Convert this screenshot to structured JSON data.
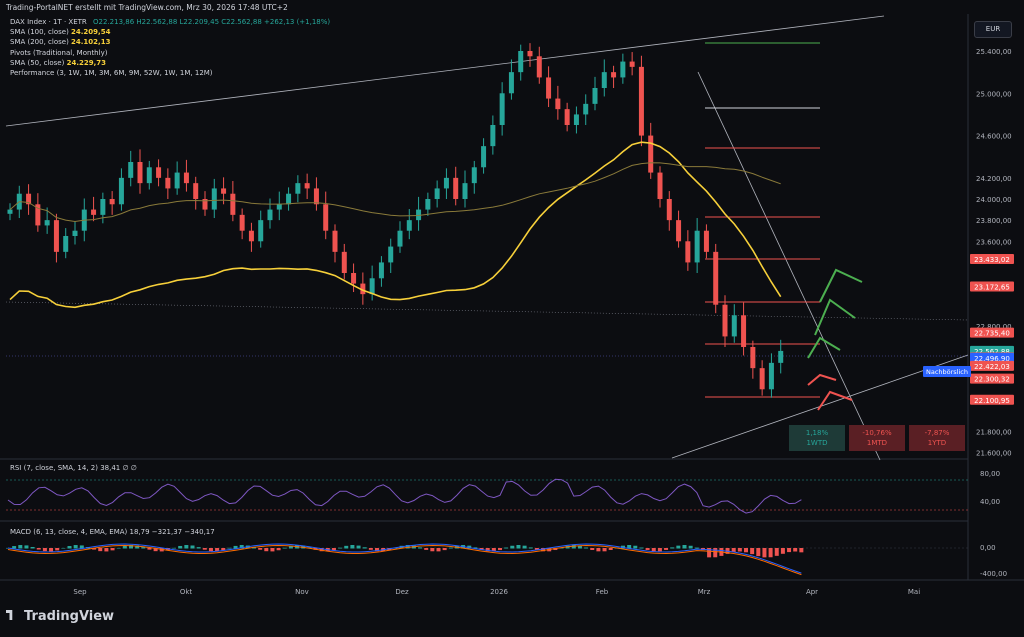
{
  "header": {
    "title": "Trading-PortalNET erstellt mit TradingView.com, Mrz 30, 2026 17:48 UTC+2"
  },
  "legend": {
    "symbol": "DAX Index · 1T · XETR",
    "ohlc": "O22.213,86  H22.562,88  L22.209,45  C22.562,88  +262,13 (+1,18%)",
    "items": [
      {
        "label": "SMA (100, close)",
        "value": "24.209,54",
        "color": "#f7d03a"
      },
      {
        "label": "SMA (200, close)",
        "value": "24.102,13",
        "color": "#f7d03a"
      },
      {
        "label": "Pivots (Traditional, Monthly)",
        "value": "",
        "color": "#d1d4dc"
      },
      {
        "label": "SMA (50, close)",
        "value": "24.229,73",
        "color": "#f7d03a"
      },
      {
        "label": "Performance (3, 1W, 1M, 3M, 6M, 9M, 52W, 1W, 1M, 12M)",
        "value": "",
        "color": "#d1d4dc"
      }
    ]
  },
  "currency_button": "EUR",
  "nachboerslich_label": "Nachbörslich",
  "performance": [
    {
      "pct": "1,18%",
      "period": "1WTD",
      "color": "#1e3a37",
      "text": "#26a69a"
    },
    {
      "pct": "-10,76%",
      "period": "1MTD",
      "color": "#5a1f24",
      "text": "#ef5350"
    },
    {
      "pct": "-7,87%",
      "period": "1YTD",
      "color": "#5a1f24",
      "text": "#ef5350"
    }
  ],
  "rsi_label": "RSI (7, close, SMA, 14, 2)  38,41  ∅  ∅",
  "macd_label": "MACD (6, 13, close, 4, EMA, EMA)  18,79  −321,37  −340,17",
  "footer": "TradingView",
  "colors": {
    "up": "#26a69a",
    "down": "#ef5350",
    "sma": "#f7d03a",
    "bg": "#0c0d11"
  },
  "chart_data": {
    "type": "candlestick",
    "x_ticks": [
      "Sep",
      "Okt",
      "Nov",
      "Dez",
      "2026",
      "Feb",
      "Mrz",
      "Apr",
      "Mai"
    ],
    "y_ticks": [
      "25.400,00",
      "25.000,00",
      "24.600,00",
      "24.200,00",
      "24.000,00",
      "23.800,00",
      "23.600,00",
      "22.800,00",
      "21.800,00",
      "21.600,00"
    ],
    "ylim": [
      21550,
      25750
    ],
    "price_tags": [
      {
        "value": 23433.02,
        "label": "23.433,02",
        "color": "#ef5350"
      },
      {
        "value": 23172.65,
        "label": "23.172,65",
        "color": "#ef5350"
      },
      {
        "value": 22735.4,
        "label": "22.735,40",
        "color": "#ef5350"
      },
      {
        "value": 22562.88,
        "label": "22.562,88",
        "color": "#26a69a"
      },
      {
        "value": 22501.49,
        "label": "22.501,49",
        "color": "#ef5350"
      },
      {
        "value": 22496.9,
        "label": "22.496,90",
        "color": "#2962ff"
      },
      {
        "value": 22422.03,
        "label": "22.422,03",
        "color": "#ef5350"
      },
      {
        "value": 22300.32,
        "label": "22.300,32",
        "color": "#ef5350"
      },
      {
        "value": 22100.95,
        "label": "22.100,95",
        "color": "#ef5350"
      }
    ],
    "close_series": [
      23900,
      24050,
      23950,
      23750,
      23800,
      23500,
      23650,
      23700,
      23900,
      23850,
      24000,
      23950,
      24200,
      24350,
      24150,
      24300,
      24200,
      24100,
      24250,
      24150,
      24000,
      23900,
      24100,
      24050,
      23850,
      23700,
      23600,
      23800,
      23900,
      23950,
      24050,
      24150,
      24100,
      23950,
      23700,
      23500,
      23300,
      23200,
      23100,
      23250,
      23400,
      23550,
      23700,
      23800,
      23900,
      24000,
      24100,
      24200,
      24000,
      24150,
      24300,
      24500,
      24700,
      25000,
      25200,
      25400,
      25350,
      25150,
      24950,
      24850,
      24700,
      24800,
      24900,
      25050,
      25200,
      25150,
      25300,
      25250,
      24600,
      24250,
      24000,
      23800,
      23600,
      23400,
      23700,
      23500,
      23000,
      22700,
      22900,
      22600,
      22400,
      22200,
      22450,
      22563
    ]
  },
  "rsi": {
    "labels": [
      "80,00",
      "40,00"
    ]
  },
  "macd": {
    "labels": [
      "0,00",
      "-400,00"
    ]
  }
}
